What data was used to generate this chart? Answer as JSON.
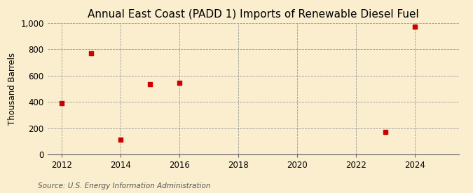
{
  "title": "Annual East Coast (PADD 1) Imports of Renewable Diesel Fuel",
  "ylabel": "Thousand Barrels",
  "source": "Source: U.S. Energy Information Administration",
  "x_data": [
    2012,
    2013,
    2014,
    2015,
    2016,
    2023,
    2024
  ],
  "y_data": [
    390,
    770,
    110,
    535,
    545,
    170,
    975
  ],
  "xlim": [
    2011.5,
    2025.5
  ],
  "ylim": [
    0,
    1000
  ],
  "yticks": [
    0,
    200,
    400,
    600,
    800,
    1000
  ],
  "xticks": [
    2012,
    2014,
    2016,
    2018,
    2020,
    2022,
    2024
  ],
  "marker_color": "#cc0000",
  "marker": "s",
  "marker_size": 4,
  "background_color": "#faeece",
  "grid_color": "#999999",
  "title_fontsize": 11,
  "label_fontsize": 8.5,
  "tick_fontsize": 8.5,
  "source_fontsize": 7.5
}
